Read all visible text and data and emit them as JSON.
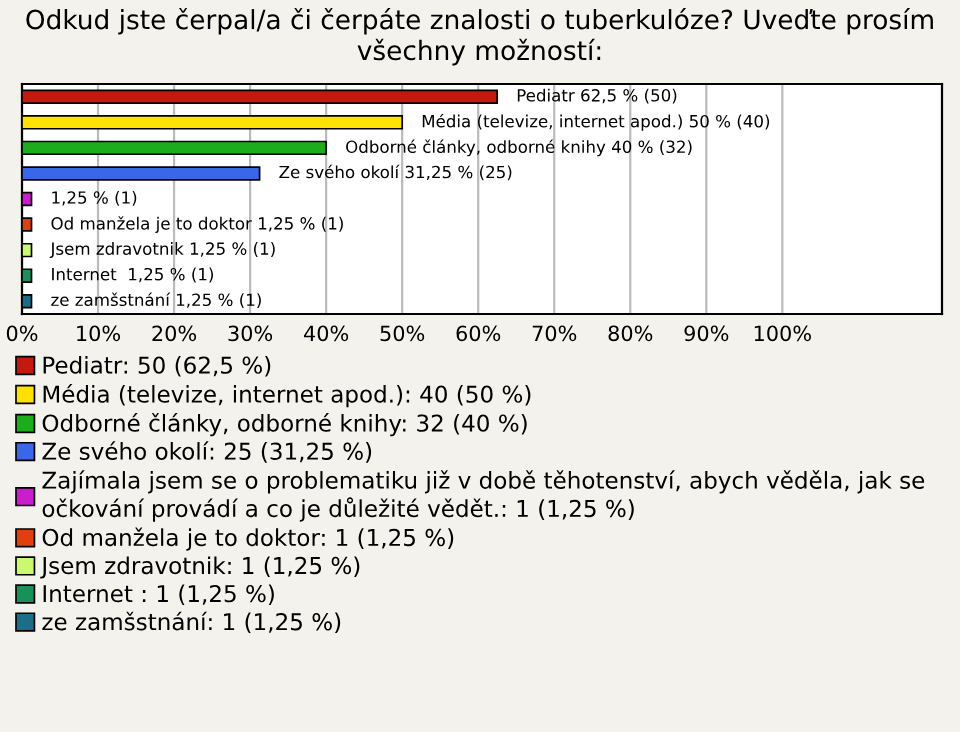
{
  "chart_data": {
    "type": "bar",
    "orientation": "horizontal",
    "title": "Odkud jste čerpal/a či čerpáte znalosti o tuberkulóze? Uveďte prosím všechny možností:",
    "categories": [
      null,
      null,
      null,
      null,
      null,
      null,
      null,
      null,
      null
    ],
    "xlim": [
      0,
      121
    ],
    "xticks": [
      {
        "value": 0,
        "label": "0%"
      },
      {
        "value": 10,
        "label": "10%"
      },
      {
        "value": 20,
        "label": "20%"
      },
      {
        "value": 30,
        "label": "30%"
      },
      {
        "value": 40,
        "label": "40%"
      },
      {
        "value": 50,
        "label": "50%"
      },
      {
        "value": 60,
        "label": "60%"
      },
      {
        "value": 70,
        "label": "70%"
      },
      {
        "value": 80,
        "label": "80%"
      },
      {
        "value": 90,
        "label": "90%"
      },
      {
        "value": 100,
        "label": "100%"
      }
    ],
    "grid": "x",
    "legend": "bottom",
    "series": [
      {
        "name": "Pediatr: 50 (62,5 %)",
        "color": "#c41a0e",
        "values": [
          62.5,
          null,
          null,
          null,
          null,
          null,
          null,
          null,
          null
        ],
        "value_labels": [
          "Pediatr 62,5 % (50)",
          null,
          null,
          null,
          null,
          null,
          null,
          null,
          null
        ]
      },
      {
        "name": "Média (televize, internet apod.): 40 (50 %)",
        "color": "#ffe000",
        "values": [
          null,
          50,
          null,
          null,
          null,
          null,
          null,
          null,
          null
        ],
        "value_labels": [
          null,
          "Média (televize, internet apod.) 50 % (40)",
          null,
          null,
          null,
          null,
          null,
          null,
          null
        ]
      },
      {
        "name": "Odborné články, odborné knihy: 32 (40 %)",
        "color": "#1cac1c",
        "values": [
          null,
          null,
          40,
          null,
          null,
          null,
          null,
          null,
          null
        ],
        "value_labels": [
          null,
          null,
          "Odborné články, odborné knihy 40 % (32)",
          null,
          null,
          null,
          null,
          null,
          null
        ]
      },
      {
        "name": "Ze svého okolí: 25 (31,25 %)",
        "color": "#3a66e8",
        "values": [
          null,
          null,
          null,
          31.25,
          null,
          null,
          null,
          null,
          null
        ],
        "value_labels": [
          null,
          null,
          null,
          "Ze svého okolí 31,25 % (25)",
          null,
          null,
          null,
          null,
          null
        ]
      },
      {
        "name": "Zajímala jsem se o problematiku již v době těhotenství, abych věděla, jak se\nočkování provádí a co je důležité vědět.: 1 (1,25 %)",
        "color": "#c81ecc",
        "values": [
          null,
          null,
          null,
          null,
          1.25,
          null,
          null,
          null,
          null
        ],
        "value_labels": [
          null,
          null,
          null,
          null,
          "1,25 % (1)",
          null,
          null,
          null,
          null
        ]
      },
      {
        "name": "Od manžela je to doktor: 1 (1,25 %)",
        "color": "#e04010",
        "values": [
          null,
          null,
          null,
          null,
          null,
          1.25,
          null,
          null,
          null
        ],
        "value_labels": [
          null,
          null,
          null,
          null,
          null,
          "Od manžela je to doktor 1,25 % (1)",
          null,
          null,
          null
        ]
      },
      {
        "name": "Jsem zdravotnik: 1 (1,25 %)",
        "color": "#ccf870",
        "values": [
          null,
          null,
          null,
          null,
          null,
          null,
          1.25,
          null,
          null
        ],
        "value_labels": [
          null,
          null,
          null,
          null,
          null,
          null,
          "Jsem zdravotnik 1,25 % (1)",
          null,
          null
        ]
      },
      {
        "name": "Internet : 1 (1,25 %)",
        "color": "#18905a",
        "values": [
          null,
          null,
          null,
          null,
          null,
          null,
          null,
          1.25,
          null
        ],
        "value_labels": [
          null,
          null,
          null,
          null,
          null,
          null,
          null,
          "Internet  1,25 % (1)",
          null
        ]
      },
      {
        "name": "ze zamšstnání: 1 (1,25 %)",
        "color": "#1c6e88",
        "values": [
          null,
          null,
          null,
          null,
          null,
          null,
          null,
          null,
          1.25
        ],
        "value_labels": [
          null,
          null,
          null,
          null,
          null,
          null,
          null,
          null,
          "ze zamšstnání 1,25 % (1)"
        ]
      }
    ]
  }
}
